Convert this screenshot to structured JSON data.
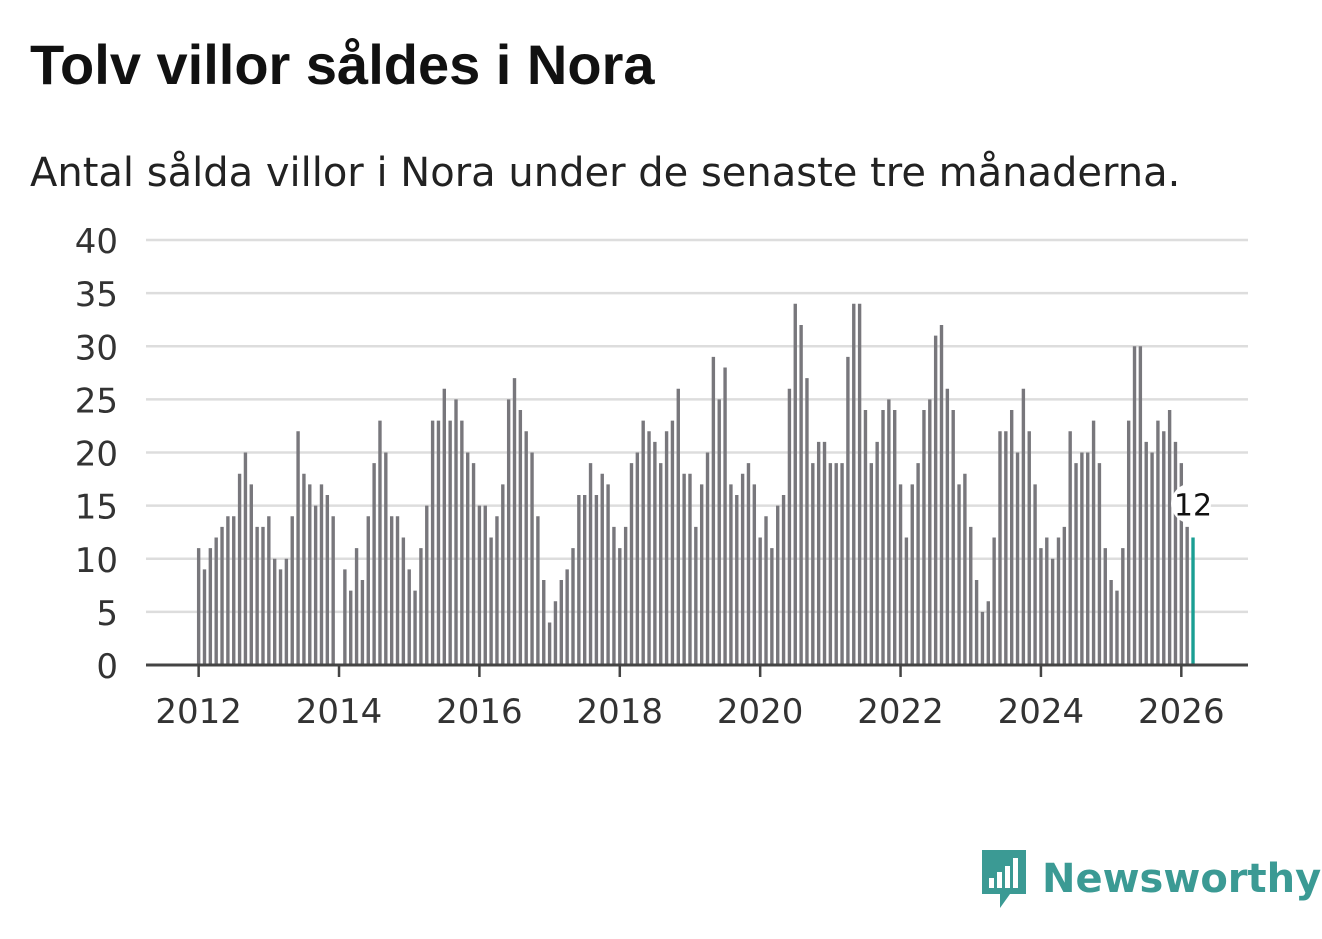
{
  "title": "Tolv villor såldes i Nora",
  "subtitle": "Antal sålda villor i Nora under de senaste tre månaderna.",
  "brand": {
    "name": "Newsworthy",
    "icon": "newsworthy-logo-icon",
    "color": "#3b9a94"
  },
  "colors": {
    "bar": "#78777c",
    "highlight": "#1a9e93",
    "grid": "#dddddd",
    "axis": "#444444",
    "text": "#333333"
  },
  "chart_data": {
    "type": "bar",
    "ylim": [
      0,
      40
    ],
    "yticks": [
      "0",
      "5",
      "10",
      "15",
      "20",
      "25",
      "30",
      "35",
      "40"
    ],
    "xticks": [
      "2012",
      "2014",
      "2016",
      "2018",
      "2020",
      "2022",
      "2024",
      "2026"
    ],
    "xlim": [
      2011.25,
      2026.95
    ],
    "start": 2012.0,
    "xlabel": "",
    "ylabel": "",
    "grid": true,
    "highlight_label": "12",
    "values": [
      11,
      9,
      11,
      12,
      13,
      14,
      14,
      18,
      20,
      17,
      13,
      13,
      14,
      10,
      9,
      10,
      14,
      22,
      18,
      17,
      15,
      17,
      16,
      14,
      0,
      9,
      7,
      11,
      8,
      14,
      19,
      23,
      20,
      14,
      14,
      12,
      9,
      7,
      11,
      15,
      23,
      23,
      26,
      23,
      25,
      23,
      20,
      19,
      15,
      15,
      12,
      14,
      17,
      25,
      27,
      24,
      22,
      20,
      14,
      8,
      4,
      6,
      8,
      9,
      11,
      16,
      16,
      19,
      16,
      18,
      17,
      13,
      11,
      13,
      19,
      20,
      23,
      22,
      21,
      19,
      22,
      23,
      26,
      18,
      18,
      13,
      17,
      20,
      29,
      25,
      28,
      17,
      16,
      18,
      19,
      17,
      12,
      14,
      11,
      15,
      16,
      26,
      34,
      32,
      27,
      19,
      21,
      21,
      19,
      19,
      19,
      29,
      34,
      34,
      24,
      19,
      21,
      24,
      25,
      24,
      17,
      12,
      17,
      19,
      24,
      25,
      31,
      32,
      26,
      24,
      17,
      18,
      13,
      8,
      5,
      6,
      12,
      22,
      22,
      24,
      20,
      26,
      22,
      17,
      11,
      12,
      10,
      12,
      13,
      22,
      19,
      20,
      20,
      23,
      19,
      11,
      8,
      7,
      11,
      23,
      30,
      30,
      21,
      20,
      23,
      22,
      24,
      21,
      19,
      13,
      12
    ]
  }
}
